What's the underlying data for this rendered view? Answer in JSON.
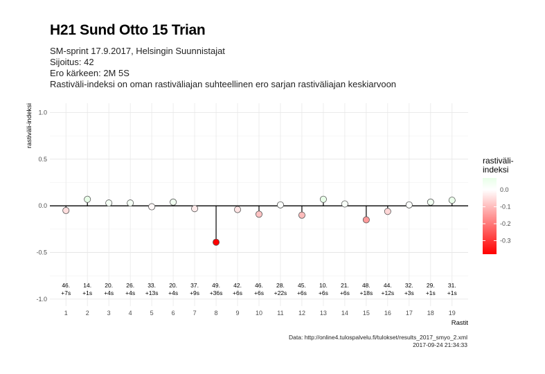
{
  "title": "H21 Sund Otto 15 Trian",
  "subtitle": [
    "SM-sprint 17.9.2017, Helsingin Suunnistajat",
    "Sijoitus: 42",
    "Ero kärkeen: 2M 5S",
    "Rastiväli-indeksi on oman rastiväliajan suhteellinen ero sarjan rastiväliajan keskiarvoon"
  ],
  "caption": {
    "line1": "Data: http://online4.tulospalvelu.fi/tulokset/results_2017_smyo_2.xml",
    "line2": "2017-09-24 21:34:33"
  },
  "legend": {
    "title_line1": "rastiväli-",
    "title_line2": "indeksi",
    "ticks": [
      "0.0",
      "-0.1",
      "-0.2",
      "-0.3"
    ],
    "tick_values": [
      0.0,
      -0.1,
      -0.2,
      -0.3
    ],
    "range": [
      -0.38,
      0.07
    ]
  },
  "colors": {
    "negative": "#ff0000",
    "neutral": "#ffffff",
    "positive": "#e8ffe8"
  },
  "chart_data": {
    "type": "scatter",
    "xlabel": "Rastit",
    "ylabel": "rastiväli-indeksi",
    "ylim": [
      -1.0,
      1.0
    ],
    "yticks": [
      "1.0",
      "0.5",
      "0.0",
      "-0.5",
      "-1.0"
    ],
    "ytick_values": [
      1.0,
      0.5,
      0.0,
      -0.5,
      -1.0
    ],
    "x": [
      1,
      2,
      3,
      4,
      5,
      6,
      7,
      8,
      9,
      10,
      11,
      12,
      13,
      14,
      15,
      16,
      17,
      18,
      19
    ],
    "values": [
      -0.05,
      0.07,
      0.03,
      0.03,
      -0.01,
      0.04,
      -0.03,
      -0.39,
      -0.04,
      -0.09,
      0.01,
      -0.1,
      0.07,
      0.02,
      -0.15,
      -0.06,
      0.01,
      0.04,
      0.06
    ],
    "labels": [
      [
        "46.",
        "+7s"
      ],
      [
        "14.",
        "+1s"
      ],
      [
        "20.",
        "+4s"
      ],
      [
        "26.",
        "+4s"
      ],
      [
        "33.",
        "+13s"
      ],
      [
        "20.",
        "+4s"
      ],
      [
        "37.",
        "+9s"
      ],
      [
        "49.",
        "+36s"
      ],
      [
        "42.",
        "+6s"
      ],
      [
        "46.",
        "+6s"
      ],
      [
        "28.",
        "+22s"
      ],
      [
        "45.",
        "+6s"
      ],
      [
        "10.",
        "+6s"
      ],
      [
        "21.",
        "+6s"
      ],
      [
        "48.",
        "+18s"
      ],
      [
        "44.",
        "+12s"
      ],
      [
        "32.",
        "+3s"
      ],
      [
        "29.",
        "+1s"
      ],
      [
        "31.",
        "+1s"
      ]
    ],
    "grid": true
  }
}
